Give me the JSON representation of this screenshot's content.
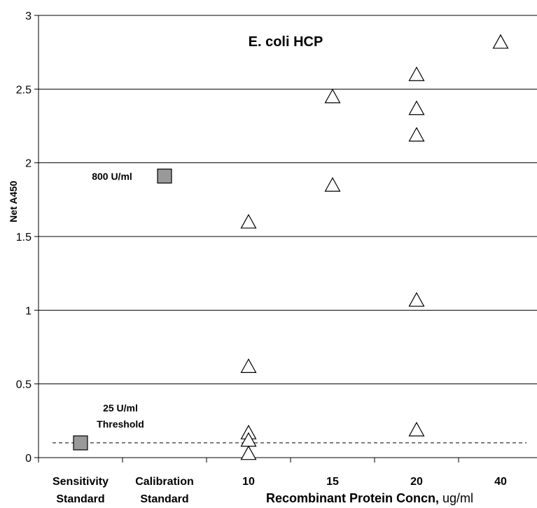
{
  "chart_data": {
    "type": "scatter",
    "title": "E. coli HCP",
    "ylabel": "Net A450",
    "xlabel_bold": "Recombinant Protein Concn,",
    "xlabel_unit": " ug/ml",
    "ylim": [
      0,
      3
    ],
    "yticks": [
      "0",
      "0.5",
      "1",
      "1.5",
      "2",
      "2.5",
      "3"
    ],
    "grid": "horizontal",
    "categories": [
      {
        "line1": "Sensitivity",
        "line2": "Standard"
      },
      {
        "line1": "Calibration",
        "line2": "Standard"
      },
      {
        "line1": "10",
        "line2": ""
      },
      {
        "line1": "15",
        "line2": ""
      },
      {
        "line1": "20",
        "line2": ""
      },
      {
        "line1": "40",
        "line2": ""
      }
    ],
    "series": [
      {
        "marker": "square",
        "color": "#999999",
        "points": [
          {
            "category": 0,
            "y": 0.1
          },
          {
            "category": 1,
            "y": 1.91
          }
        ]
      },
      {
        "marker": "triangle",
        "color": "#ffffff",
        "points": [
          {
            "category": 2,
            "y": 1.6
          },
          {
            "category": 2,
            "y": 0.62
          },
          {
            "category": 2,
            "y": 0.17
          },
          {
            "category": 2,
            "y": 0.12
          },
          {
            "category": 2,
            "y": 0.03
          },
          {
            "category": 3,
            "y": 2.45
          },
          {
            "category": 3,
            "y": 1.85
          },
          {
            "category": 4,
            "y": 2.6
          },
          {
            "category": 4,
            "y": 2.37
          },
          {
            "category": 4,
            "y": 2.19
          },
          {
            "category": 4,
            "y": 1.07
          },
          {
            "category": 4,
            "y": 0.19
          },
          {
            "category": 5,
            "y": 2.82
          }
        ]
      }
    ],
    "threshold": {
      "y": 0.1,
      "style": "dashed",
      "label_line1": "25 U/ml",
      "label_line2": "Threshold"
    },
    "annotation_800": "800 U/ml"
  }
}
